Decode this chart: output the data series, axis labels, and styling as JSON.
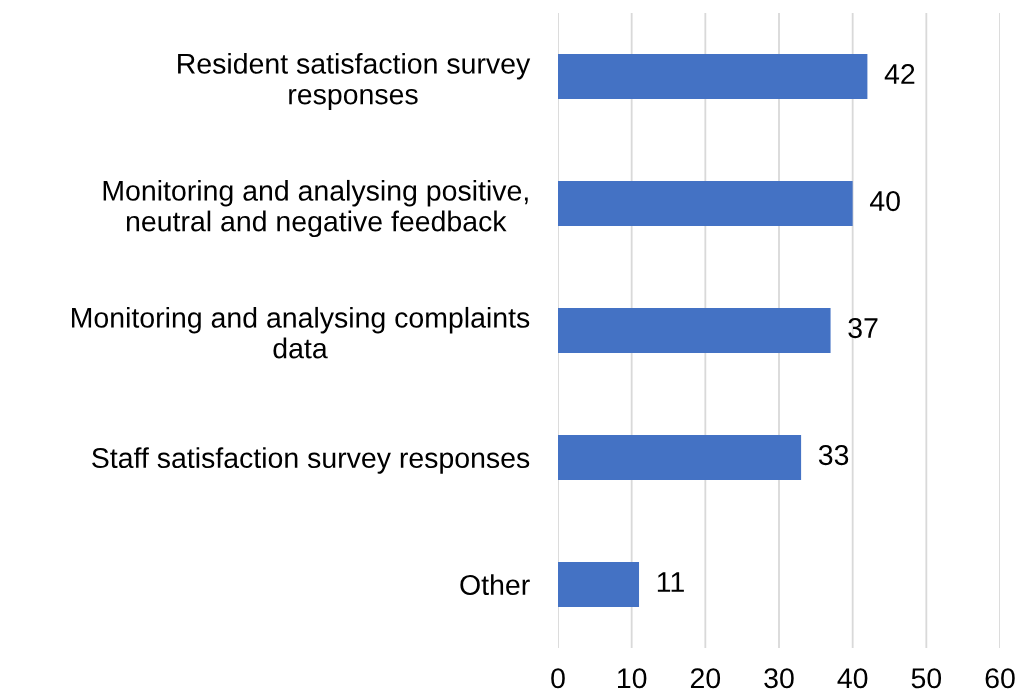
{
  "chart_data": {
    "type": "bar",
    "orientation": "horizontal",
    "categories": [
      "Resident satisfaction survey\nresponses",
      "Monitoring and analysing positive,\nneutral and negative feedback",
      "Monitoring and analysing complaints\ndata",
      "Staff satisfaction survey responses",
      "Other"
    ],
    "values": [
      42,
      40,
      37,
      33,
      11
    ],
    "color": "#4472c4",
    "xlim": [
      0,
      60
    ],
    "xticks": [
      0,
      10,
      20,
      30,
      40,
      50,
      60
    ],
    "grid": "x",
    "data_labels": true
  }
}
